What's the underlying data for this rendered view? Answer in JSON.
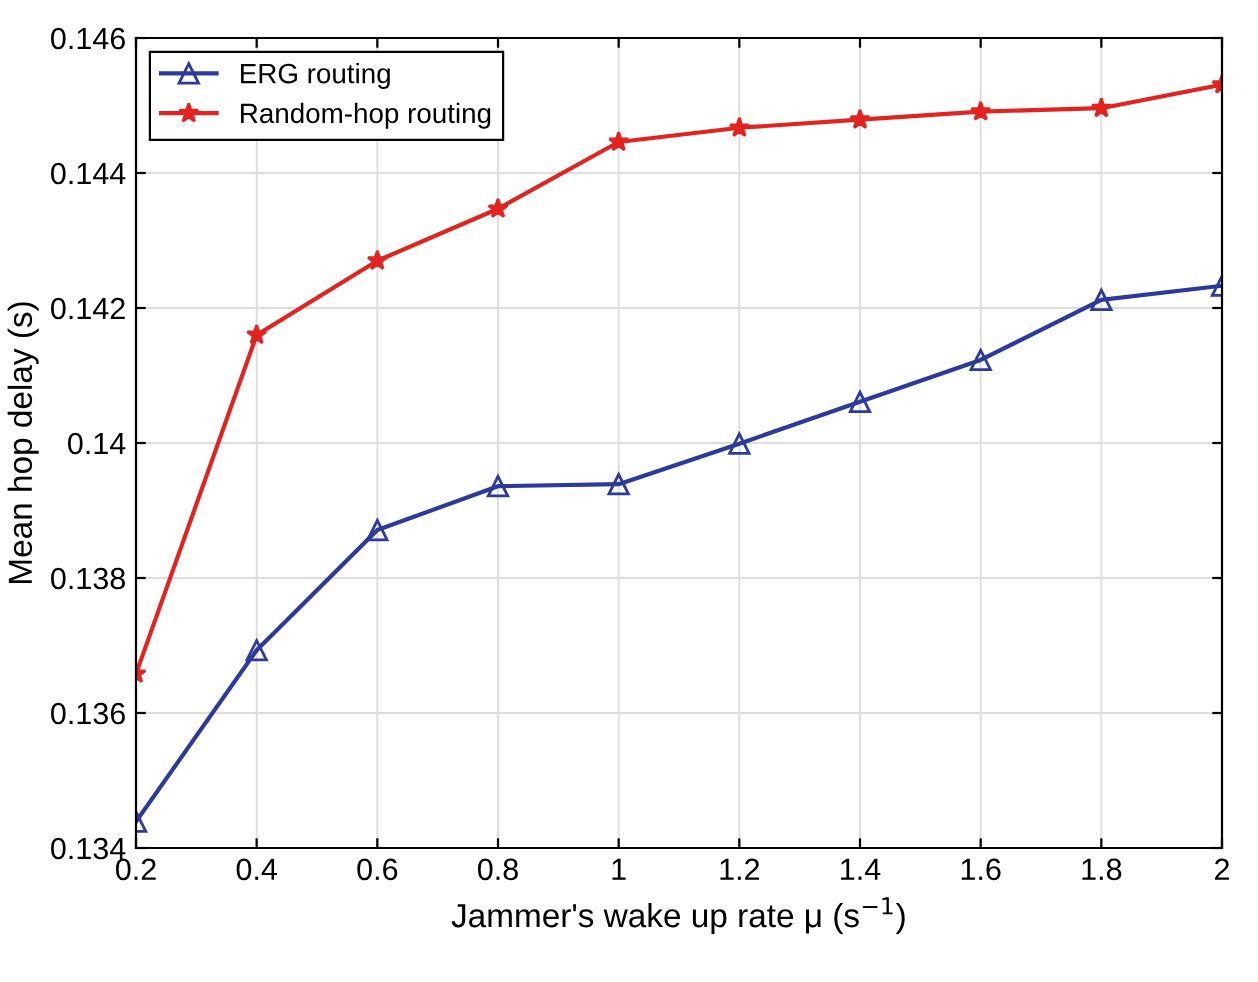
{
  "chart_data": {
    "type": "line",
    "xlabel": "Jammer's wake up rate μ (s$^{−1}$)",
    "ylabel": "Mean hop delay (s)",
    "x": [
      0.2,
      0.4,
      0.6,
      0.8,
      1,
      1.2,
      1.4,
      1.6,
      1.8,
      2
    ],
    "series": [
      {
        "name": "ERG routing",
        "color": "#2b3a9c",
        "marker": "triangle",
        "values": [
          0.13439,
          0.13693,
          0.13871,
          0.13936,
          0.13939,
          0.13999,
          0.14061,
          0.14123,
          0.14212,
          0.14233
        ]
      },
      {
        "name": "Random-hop routing",
        "color": "#e2231f",
        "marker": "star",
        "values": [
          0.13658,
          0.1416,
          0.1427,
          0.14347,
          0.14446,
          0.14467,
          0.14479,
          0.14491,
          0.14496,
          0.14531
        ]
      }
    ],
    "xlim": [
      0.2,
      2
    ],
    "xticks": [
      0.2,
      0.4,
      0.6,
      0.8,
      1,
      1.2,
      1.4,
      1.6,
      1.8,
      2
    ],
    "ylim": [
      0.134,
      0.146
    ],
    "yticks": [
      0.134,
      0.136,
      0.138,
      0.14,
      0.142,
      0.144,
      0.146
    ],
    "grid": true,
    "legend": "top left",
    "line_style": "solid"
  }
}
